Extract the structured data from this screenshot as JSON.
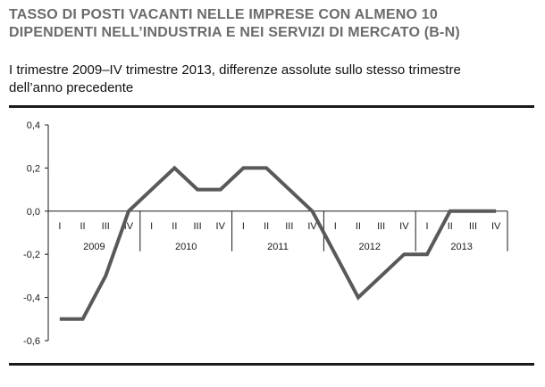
{
  "header": {
    "title_line1": "TASSO DI POSTI VACANTI NELLE IMPRESE CON ALMENO 10",
    "title_line2": "DIPENDENTI NELL’INDUSTRIA E NEI SERVIZI DI MERCATO (B-N)",
    "subtitle_line1": "I trimestre 2009–IV trimestre 2013, differenze assolute sullo stesso trimestre",
    "subtitle_line2": "dell’anno precedente"
  },
  "chart_data": {
    "type": "line",
    "title": "TASSO DI POSTI VACANTI NELLE IMPRESE CON ALMENO 10 DIPENDENTI NELL’INDUSTRIA E NEI SERVIZI DI MERCATO (B-N)",
    "subtitle": "I trimestre 2009–IV trimestre 2013, differenze assolute sullo stesso trimestre dell’anno precedente",
    "xlabel": "",
    "ylabel": "",
    "ylim": [
      -0.6,
      0.4
    ],
    "yticks": [
      0.4,
      0.2,
      0.0,
      -0.2,
      -0.4,
      -0.6
    ],
    "ytick_labels": [
      "0,4",
      "0,2",
      "0,0",
      "-0,2",
      "-0,4",
      "-0,6"
    ],
    "quarters": [
      "I",
      "II",
      "III",
      "IV"
    ],
    "years": [
      "2009",
      "2010",
      "2011",
      "2012",
      "2013"
    ],
    "values": [
      -0.5,
      -0.5,
      -0.3,
      0.0,
      0.1,
      0.2,
      0.1,
      0.1,
      0.2,
      0.2,
      0.1,
      0.0,
      -0.2,
      -0.4,
      -0.3,
      -0.2,
      -0.2,
      0.0,
      0.0,
      0.0
    ],
    "grid": false,
    "legend": "none",
    "line_color": "#595959"
  }
}
